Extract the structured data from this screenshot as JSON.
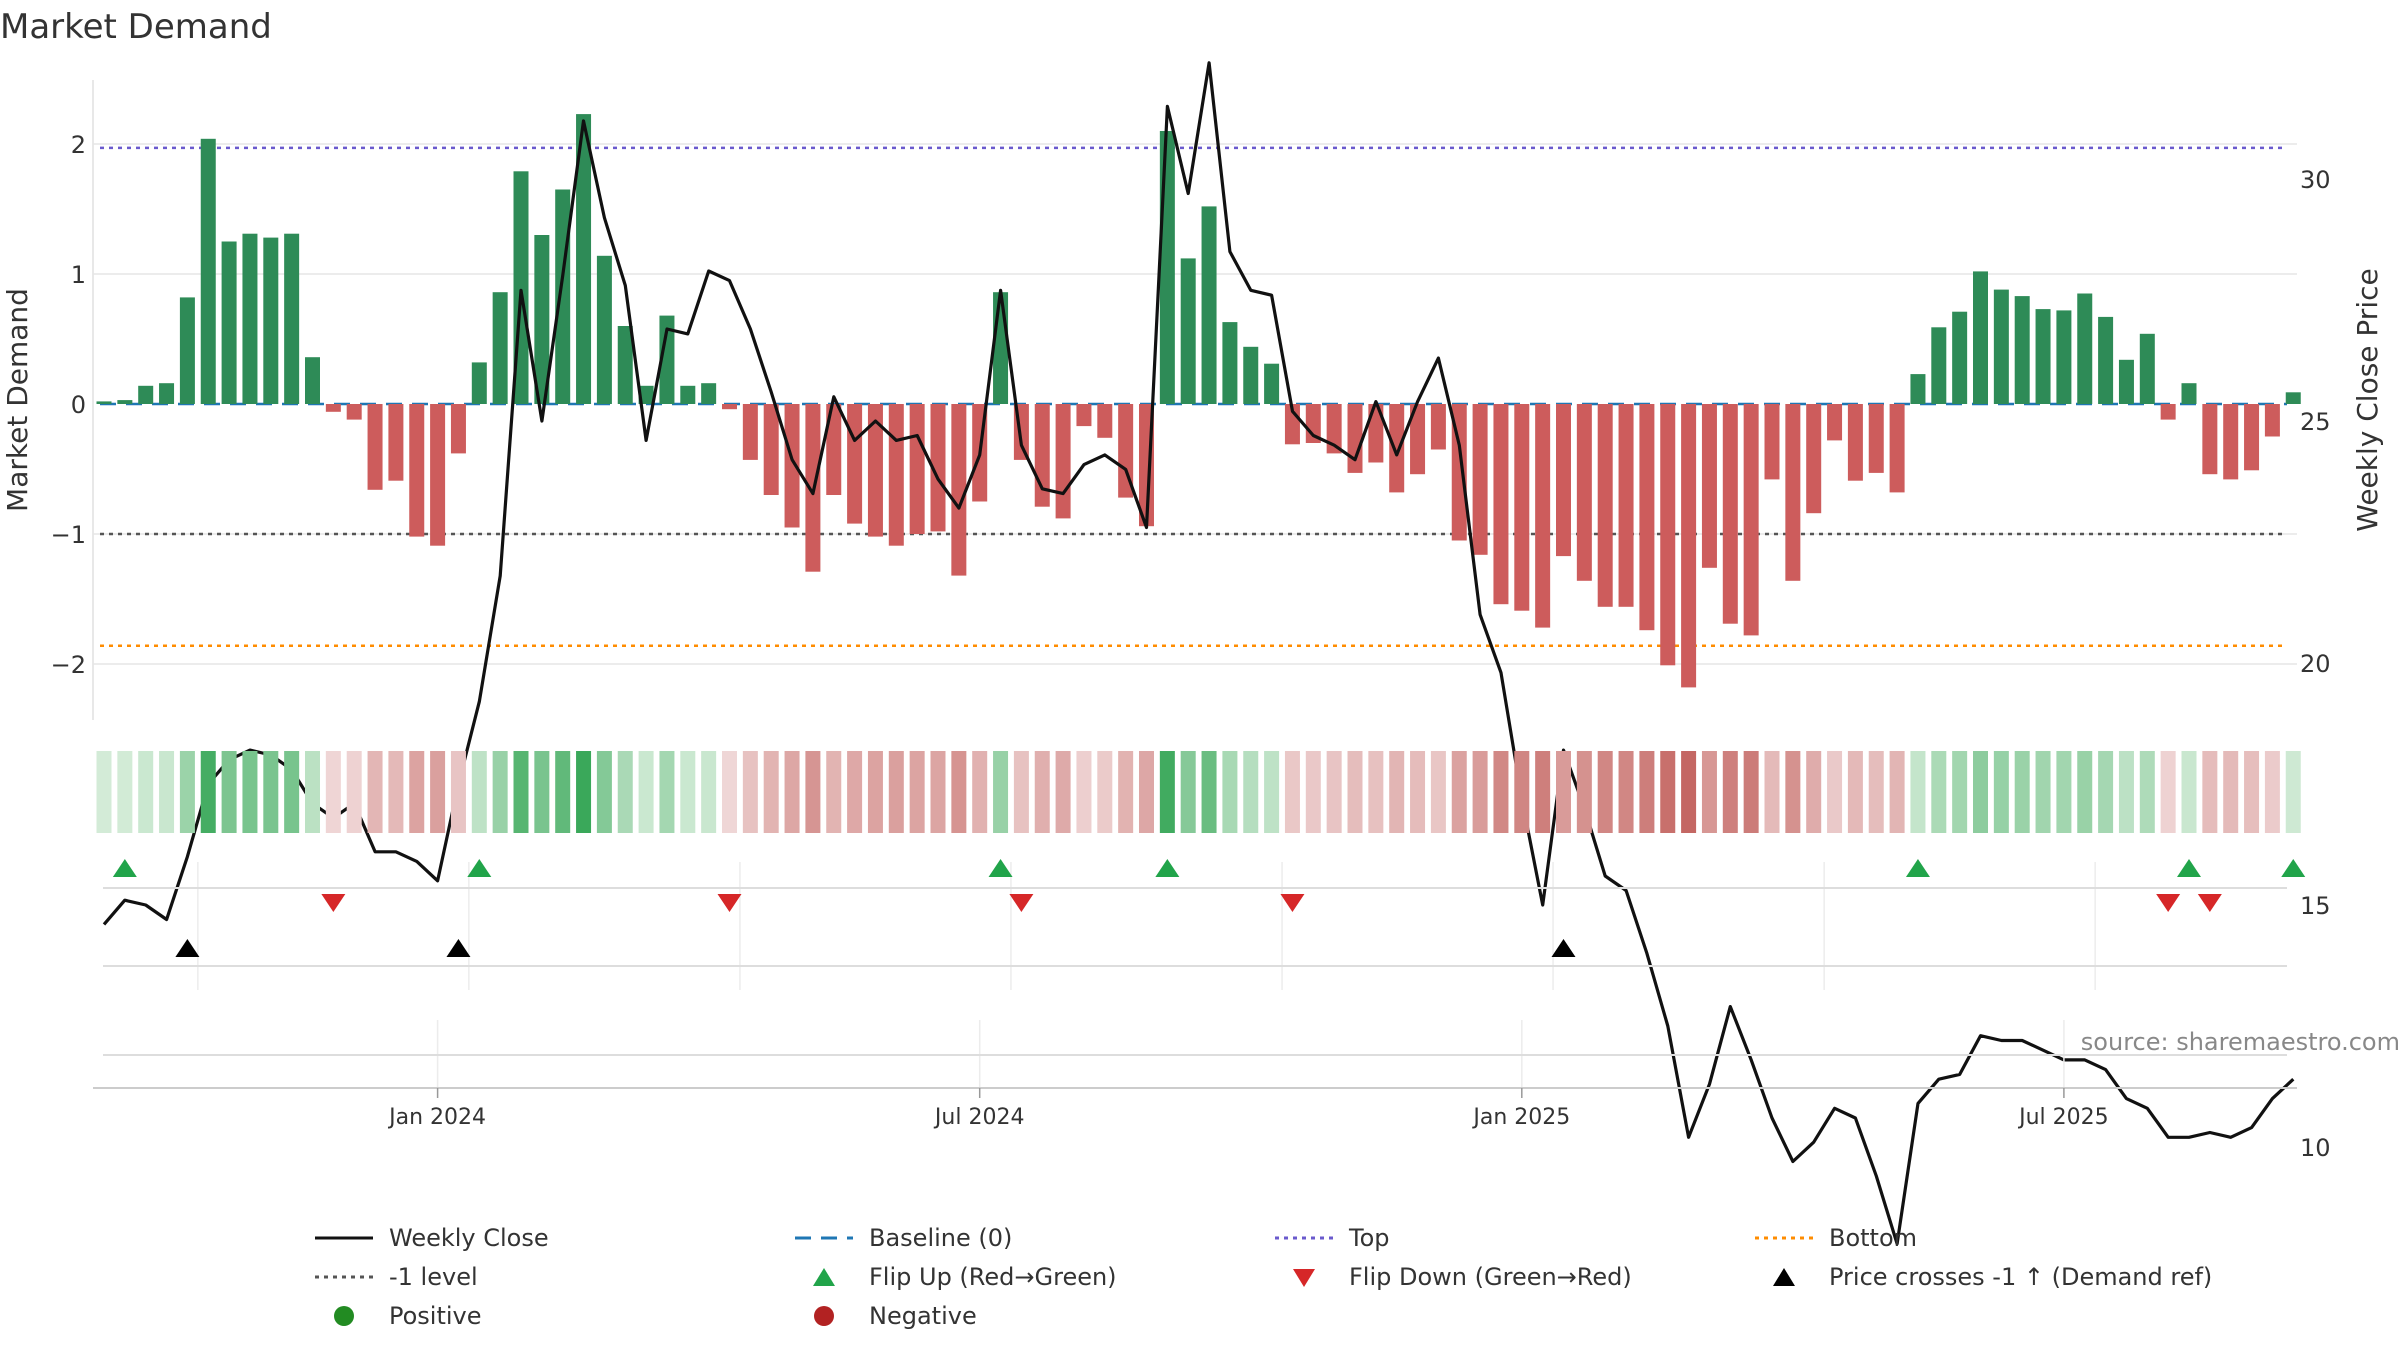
{
  "chart_data": {
    "type": "bar",
    "title": "Market Demand",
    "ylabel": "Market Demand",
    "y2label": "Weekly Close Price",
    "ylim": [
      -2.45,
      2.45
    ],
    "y2lim": [
      7.5,
      33.8
    ],
    "yticks": [
      2,
      1,
      0,
      -1,
      -2
    ],
    "ytick_labels": [
      "2",
      "1",
      "0",
      "−1",
      "−2"
    ],
    "y2ticks": [
      30,
      25,
      20,
      15,
      10
    ],
    "y2tick_labels": [
      "30",
      "25",
      "20",
      "15",
      "10"
    ],
    "date_ticks": [
      {
        "label": "Jan 2024",
        "week": 16
      },
      {
        "label": "Jul 2024",
        "week": 42
      },
      {
        "label": "Jan 2025",
        "week": 68
      },
      {
        "label": "Jul 2025",
        "week": 94
      }
    ],
    "reference_lines": {
      "baseline": 0,
      "top": 1.97,
      "bottom": -1.86,
      "minus_one": -1
    },
    "colors": {
      "positive": "#2e8b57",
      "negative": "#cd5c5c",
      "price": "#111111",
      "baseline": "#1f77b4",
      "top": "#6a5acd",
      "bottom": "#ff8c00",
      "minus_one": "#555555",
      "flip_up": "#21a44a",
      "flip_down": "#d62728",
      "cross": "#000000",
      "grid": "#e6e6e6"
    },
    "demand": [
      0.02,
      0.03,
      0.14,
      0.16,
      0.82,
      2.04,
      1.25,
      1.31,
      1.28,
      1.31,
      0.36,
      -0.06,
      -0.12,
      -0.66,
      -0.59,
      -1.02,
      -1.09,
      -0.38,
      0.32,
      0.86,
      1.79,
      1.3,
      1.65,
      2.23,
      1.14,
      0.6,
      0.14,
      0.68,
      0.14,
      0.16,
      -0.04,
      -0.43,
      -0.7,
      -0.95,
      -1.29,
      -0.7,
      -0.92,
      -1.02,
      -1.09,
      -1.0,
      -0.98,
      -1.32,
      -0.75,
      0.86,
      -0.43,
      -0.79,
      -0.88,
      -0.17,
      -0.26,
      -0.72,
      -0.94,
      2.1,
      1.12,
      1.52,
      0.63,
      0.44,
      0.31,
      -0.31,
      -0.3,
      -0.38,
      -0.53,
      -0.45,
      -0.68,
      -0.54,
      -0.35,
      -1.05,
      -1.16,
      -1.54,
      -1.59,
      -1.72,
      -1.17,
      -1.36,
      -1.56,
      -1.56,
      -1.74,
      -2.01,
      -2.18,
      -1.26,
      -1.69,
      -1.78,
      -0.58,
      -1.36,
      -0.84,
      -0.28,
      -0.59,
      -0.53,
      -0.68,
      0.23,
      0.59,
      0.71,
      1.02,
      0.88,
      0.83,
      0.73,
      0.72,
      0.85,
      0.67,
      0.34,
      0.54,
      -0.12,
      0.16,
      -0.54,
      -0.58,
      -0.51,
      -0.25,
      0.09
    ],
    "price": [
      14.6,
      15.1,
      15.0,
      14.7,
      16.0,
      17.5,
      18.0,
      18.2,
      18.1,
      17.8,
      17.1,
      16.8,
      17.1,
      16.1,
      16.1,
      15.9,
      15.5,
      17.5,
      19.2,
      21.8,
      27.7,
      25.0,
      28.0,
      31.2,
      29.2,
      27.8,
      24.6,
      26.9,
      26.8,
      28.1,
      27.9,
      26.9,
      25.6,
      24.2,
      23.5,
      25.5,
      24.6,
      25.0,
      24.6,
      24.7,
      23.8,
      23.2,
      24.3,
      27.7,
      24.5,
      23.6,
      23.5,
      24.1,
      24.3,
      24.0,
      22.8,
      31.5,
      29.7,
      32.4,
      28.5,
      27.7,
      27.6,
      25.2,
      24.7,
      24.5,
      24.2,
      25.4,
      24.3,
      25.4,
      26.3,
      24.5,
      21.0,
      19.8,
      17.2,
      15.0,
      18.2,
      17.0,
      15.6,
      15.3,
      14.0,
      12.5,
      10.2,
      11.3,
      12.9,
      11.8,
      10.6,
      9.7,
      10.1,
      10.8,
      10.6,
      9.4,
      8.0,
      10.9,
      11.4,
      11.5,
      12.3,
      12.2,
      12.2,
      12.0,
      11.8,
      11.8,
      11.6,
      11.0,
      10.8,
      10.2,
      10.2,
      10.3,
      10.2,
      10.4,
      11.0,
      11.4
    ],
    "flip_up": [
      1,
      18,
      43,
      51,
      87,
      100,
      105
    ],
    "flip_down": [
      11,
      30,
      44,
      57,
      99,
      101
    ],
    "cross_up": [
      4,
      17,
      70
    ],
    "legend": [
      {
        "key": "weekly_close",
        "label": "Weekly Close"
      },
      {
        "key": "baseline",
        "label": "Baseline (0)"
      },
      {
        "key": "top",
        "label": "Top"
      },
      {
        "key": "bottom",
        "label": "Bottom"
      },
      {
        "key": "minus_one",
        "label": "-1 level"
      },
      {
        "key": "flip_up",
        "label": "Flip Up (Red→Green)"
      },
      {
        "key": "flip_down",
        "label": "Flip Down (Green→Red)"
      },
      {
        "key": "cross",
        "label": "Price crosses -1 ↑ (Demand ref)"
      },
      {
        "key": "positive",
        "label": "Positive"
      },
      {
        "key": "negative",
        "label": "Negative"
      }
    ],
    "source": "source: sharemaestro.com",
    "grid": true,
    "legend_position": "bottom"
  }
}
